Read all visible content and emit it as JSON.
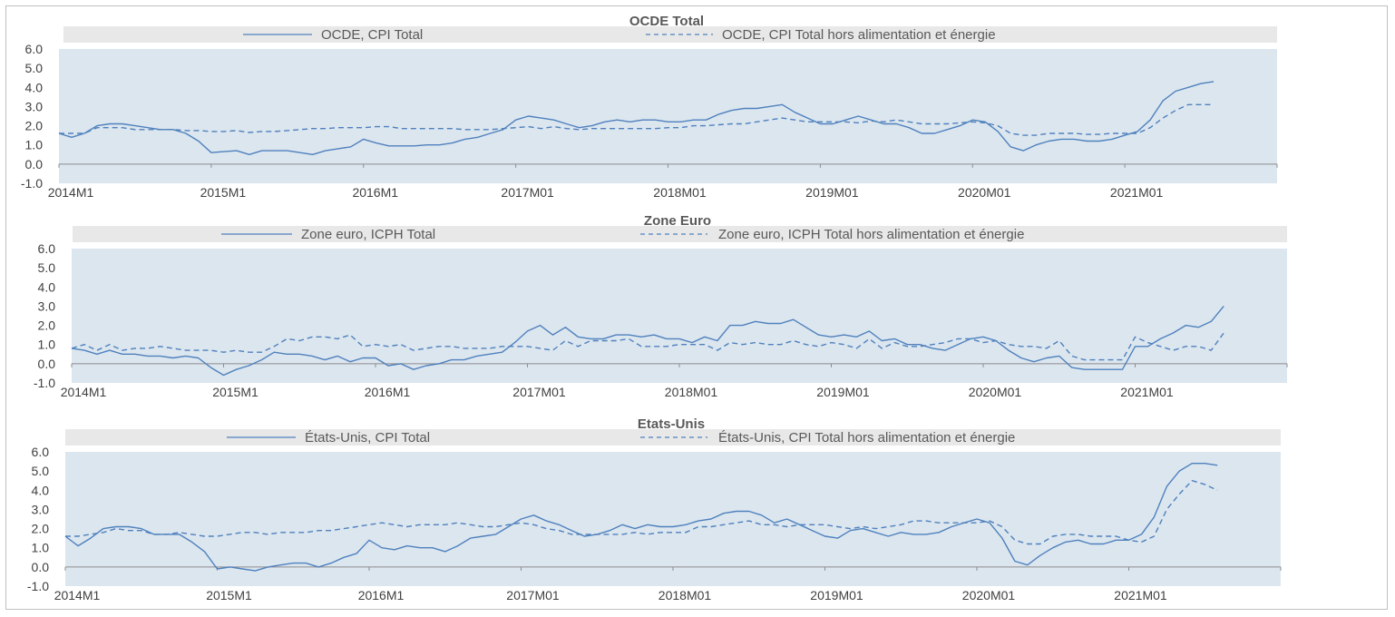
{
  "chart_data": [
    {
      "type": "line",
      "title": "OCDE Total",
      "xlabel": "",
      "ylabel": "",
      "ylim": [
        -1.0,
        6.0
      ],
      "y_ticks": [
        "-1.0",
        "0.0",
        "1.0",
        "2.0",
        "3.0",
        "4.0",
        "5.0",
        "6.0"
      ],
      "x_tick_labels": [
        "2014M1",
        "2015M1",
        "2016M1",
        "2017M01",
        "2018M01",
        "2019M01",
        "2020M01",
        "2021M01"
      ],
      "x_range_months": [
        "2014M1",
        "2022M1"
      ],
      "grid": false,
      "legend_position": "top",
      "colors": {
        "line": "#4f81bd",
        "plot_bg": "#dce6ef",
        "legend_bg": "#e8e8e8"
      },
      "series": [
        {
          "name": "OCDE, CPI Total",
          "style": "solid",
          "start": "2014M1",
          "values": [
            1.6,
            1.4,
            1.6,
            2.0,
            2.1,
            2.1,
            2.0,
            1.9,
            1.8,
            1.8,
            1.6,
            1.2,
            0.6,
            0.65,
            0.7,
            0.5,
            0.7,
            0.7,
            0.7,
            0.6,
            0.5,
            0.7,
            0.8,
            0.9,
            1.3,
            1.1,
            0.95,
            0.95,
            0.95,
            1.0,
            1.0,
            1.1,
            1.3,
            1.4,
            1.6,
            1.8,
            2.3,
            2.5,
            2.4,
            2.3,
            2.1,
            1.9,
            2.0,
            2.2,
            2.3,
            2.2,
            2.3,
            2.3,
            2.2,
            2.2,
            2.3,
            2.3,
            2.6,
            2.8,
            2.9,
            2.9,
            3.0,
            3.1,
            2.7,
            2.4,
            2.1,
            2.1,
            2.3,
            2.5,
            2.3,
            2.1,
            2.1,
            1.9,
            1.6,
            1.6,
            1.8,
            2.0,
            2.3,
            2.2,
            1.7,
            0.9,
            0.7,
            1.0,
            1.2,
            1.3,
            1.3,
            1.2,
            1.2,
            1.3,
            1.5,
            1.7,
            2.3,
            3.3,
            3.8,
            4.0,
            4.2,
            4.3
          ]
        },
        {
          "name": "OCDE, CPI Total hors alimentation et énergie",
          "style": "dashed",
          "start": "2014M1",
          "values": [
            1.6,
            1.6,
            1.6,
            1.9,
            1.9,
            1.9,
            1.8,
            1.8,
            1.8,
            1.8,
            1.75,
            1.75,
            1.7,
            1.7,
            1.75,
            1.65,
            1.7,
            1.7,
            1.75,
            1.8,
            1.85,
            1.85,
            1.9,
            1.9,
            1.9,
            1.95,
            1.95,
            1.85,
            1.85,
            1.85,
            1.85,
            1.85,
            1.8,
            1.8,
            1.8,
            1.85,
            1.9,
            1.95,
            1.85,
            1.95,
            1.85,
            1.8,
            1.85,
            1.85,
            1.85,
            1.85,
            1.85,
            1.85,
            1.9,
            1.9,
            2.0,
            2.0,
            2.05,
            2.1,
            2.1,
            2.2,
            2.3,
            2.4,
            2.3,
            2.2,
            2.2,
            2.2,
            2.2,
            2.15,
            2.25,
            2.2,
            2.3,
            2.2,
            2.1,
            2.1,
            2.1,
            2.15,
            2.2,
            2.15,
            2.0,
            1.6,
            1.5,
            1.5,
            1.6,
            1.6,
            1.6,
            1.55,
            1.55,
            1.6,
            1.6,
            1.6,
            1.9,
            2.4,
            2.8,
            3.1,
            3.1,
            3.1
          ]
        }
      ]
    },
    {
      "type": "line",
      "title": "Zone Euro",
      "xlabel": "",
      "ylabel": "",
      "ylim": [
        -1.0,
        6.0
      ],
      "y_ticks": [
        "-1.0",
        "0.0",
        "1.0",
        "2.0",
        "3.0",
        "4.0",
        "5.0",
        "6.0"
      ],
      "x_tick_labels": [
        "2014M1",
        "2015M1",
        "2016M1",
        "2017M01",
        "2018M01",
        "2019M01",
        "2020M01",
        "2021M01"
      ],
      "x_range_months": [
        "2014M1",
        "2022M1"
      ],
      "grid": false,
      "legend_position": "top",
      "colors": {
        "line": "#4f81bd",
        "plot_bg": "#dce6ef",
        "legend_bg": "#e8e8e8"
      },
      "series": [
        {
          "name": "Zone euro, ICPH Total",
          "style": "solid",
          "start": "2014M1",
          "values": [
            0.8,
            0.7,
            0.5,
            0.7,
            0.5,
            0.5,
            0.4,
            0.4,
            0.3,
            0.4,
            0.3,
            -0.2,
            -0.6,
            -0.3,
            -0.1,
            0.2,
            0.6,
            0.5,
            0.5,
            0.4,
            0.2,
            0.4,
            0.1,
            0.3,
            0.3,
            -0.1,
            0.0,
            -0.3,
            -0.1,
            0.0,
            0.2,
            0.2,
            0.4,
            0.5,
            0.6,
            1.1,
            1.7,
            2.0,
            1.5,
            1.9,
            1.4,
            1.3,
            1.3,
            1.5,
            1.5,
            1.4,
            1.5,
            1.3,
            1.3,
            1.1,
            1.4,
            1.2,
            2.0,
            2.0,
            2.2,
            2.1,
            2.1,
            2.3,
            1.9,
            1.5,
            1.4,
            1.5,
            1.4,
            1.7,
            1.2,
            1.3,
            1.0,
            1.0,
            0.8,
            0.7,
            1.0,
            1.3,
            1.4,
            1.2,
            0.7,
            0.3,
            0.1,
            0.3,
            0.4,
            -0.2,
            -0.3,
            -0.3,
            -0.3,
            -0.3,
            0.9,
            0.9,
            1.3,
            1.6,
            2.0,
            1.9,
            2.2,
            3.0
          ]
        },
        {
          "name": "Zone euro, ICPH Total hors alimentation et énergie",
          "style": "dashed",
          "start": "2014M1",
          "values": [
            0.8,
            1.0,
            0.7,
            1.0,
            0.7,
            0.8,
            0.8,
            0.9,
            0.8,
            0.7,
            0.7,
            0.7,
            0.6,
            0.7,
            0.6,
            0.6,
            0.9,
            1.3,
            1.2,
            1.4,
            1.4,
            1.3,
            1.5,
            0.9,
            1.0,
            0.9,
            1.0,
            0.7,
            0.8,
            0.9,
            0.9,
            0.8,
            0.8,
            0.8,
            0.9,
            0.9,
            0.9,
            0.8,
            0.7,
            1.2,
            0.9,
            1.2,
            1.2,
            1.2,
            1.3,
            0.9,
            0.9,
            0.9,
            1.0,
            1.0,
            1.0,
            0.7,
            1.1,
            1.0,
            1.1,
            1.0,
            1.0,
            1.2,
            1.0,
            0.9,
            1.1,
            1.0,
            0.8,
            1.3,
            0.8,
            1.1,
            0.9,
            0.9,
            1.0,
            1.1,
            1.3,
            1.3,
            1.1,
            1.2,
            1.0,
            0.9,
            0.9,
            0.8,
            1.2,
            0.4,
            0.2,
            0.2,
            0.2,
            0.2,
            1.4,
            1.1,
            0.9,
            0.7,
            0.9,
            0.9,
            0.7,
            1.6
          ]
        }
      ]
    },
    {
      "type": "line",
      "title": "Etats-Unis",
      "xlabel": "",
      "ylabel": "",
      "ylim": [
        -1.0,
        6.0
      ],
      "y_ticks": [
        "-1.0",
        "0.0",
        "1.0",
        "2.0",
        "3.0",
        "4.0",
        "5.0",
        "6.0"
      ],
      "x_tick_labels": [
        "2014M1",
        "2015M1",
        "2016M1",
        "2017M01",
        "2018M01",
        "2019M01",
        "2020M01",
        "2021M01"
      ],
      "x_range_months": [
        "2014M1",
        "2022M1"
      ],
      "grid": false,
      "legend_position": "top",
      "colors": {
        "line": "#4f81bd",
        "plot_bg": "#dce6ef",
        "legend_bg": "#e8e8e8"
      },
      "series": [
        {
          "name": "États-Unis, CPI Total",
          "style": "solid",
          "start": "2014M1",
          "values": [
            1.6,
            1.1,
            1.5,
            2.0,
            2.1,
            2.1,
            2.0,
            1.7,
            1.7,
            1.7,
            1.3,
            0.8,
            -0.1,
            0.0,
            -0.1,
            -0.2,
            0.0,
            0.1,
            0.2,
            0.2,
            0.0,
            0.2,
            0.5,
            0.7,
            1.4,
            1.0,
            0.9,
            1.1,
            1.0,
            1.0,
            0.8,
            1.1,
            1.5,
            1.6,
            1.7,
            2.1,
            2.5,
            2.7,
            2.4,
            2.2,
            1.9,
            1.6,
            1.7,
            1.9,
            2.2,
            2.0,
            2.2,
            2.1,
            2.1,
            2.2,
            2.4,
            2.5,
            2.8,
            2.9,
            2.9,
            2.7,
            2.3,
            2.5,
            2.2,
            1.9,
            1.6,
            1.5,
            1.9,
            2.0,
            1.8,
            1.6,
            1.8,
            1.7,
            1.7,
            1.8,
            2.1,
            2.3,
            2.5,
            2.3,
            1.5,
            0.3,
            0.1,
            0.6,
            1.0,
            1.3,
            1.4,
            1.2,
            1.2,
            1.4,
            1.4,
            1.7,
            2.6,
            4.2,
            5.0,
            5.4,
            5.4,
            5.3
          ]
        },
        {
          "name": "États-Unis, CPI Total hors alimentation et énergie",
          "style": "dashed",
          "start": "2014M1",
          "values": [
            1.6,
            1.6,
            1.7,
            1.8,
            2.0,
            1.9,
            1.9,
            1.7,
            1.7,
            1.8,
            1.7,
            1.6,
            1.6,
            1.7,
            1.8,
            1.8,
            1.7,
            1.8,
            1.8,
            1.8,
            1.9,
            1.9,
            2.0,
            2.1,
            2.2,
            2.3,
            2.2,
            2.1,
            2.2,
            2.2,
            2.2,
            2.3,
            2.2,
            2.1,
            2.1,
            2.2,
            2.3,
            2.2,
            2.0,
            1.9,
            1.7,
            1.7,
            1.7,
            1.7,
            1.7,
            1.8,
            1.7,
            1.8,
            1.8,
            1.8,
            2.1,
            2.1,
            2.2,
            2.3,
            2.4,
            2.2,
            2.2,
            2.1,
            2.2,
            2.2,
            2.2,
            2.1,
            2.0,
            2.1,
            2.0,
            2.1,
            2.2,
            2.4,
            2.4,
            2.3,
            2.3,
            2.3,
            2.3,
            2.4,
            2.1,
            1.4,
            1.2,
            1.2,
            1.6,
            1.7,
            1.7,
            1.6,
            1.6,
            1.6,
            1.4,
            1.3,
            1.6,
            3.0,
            3.8,
            4.5,
            4.3,
            4.0
          ]
        }
      ]
    }
  ]
}
